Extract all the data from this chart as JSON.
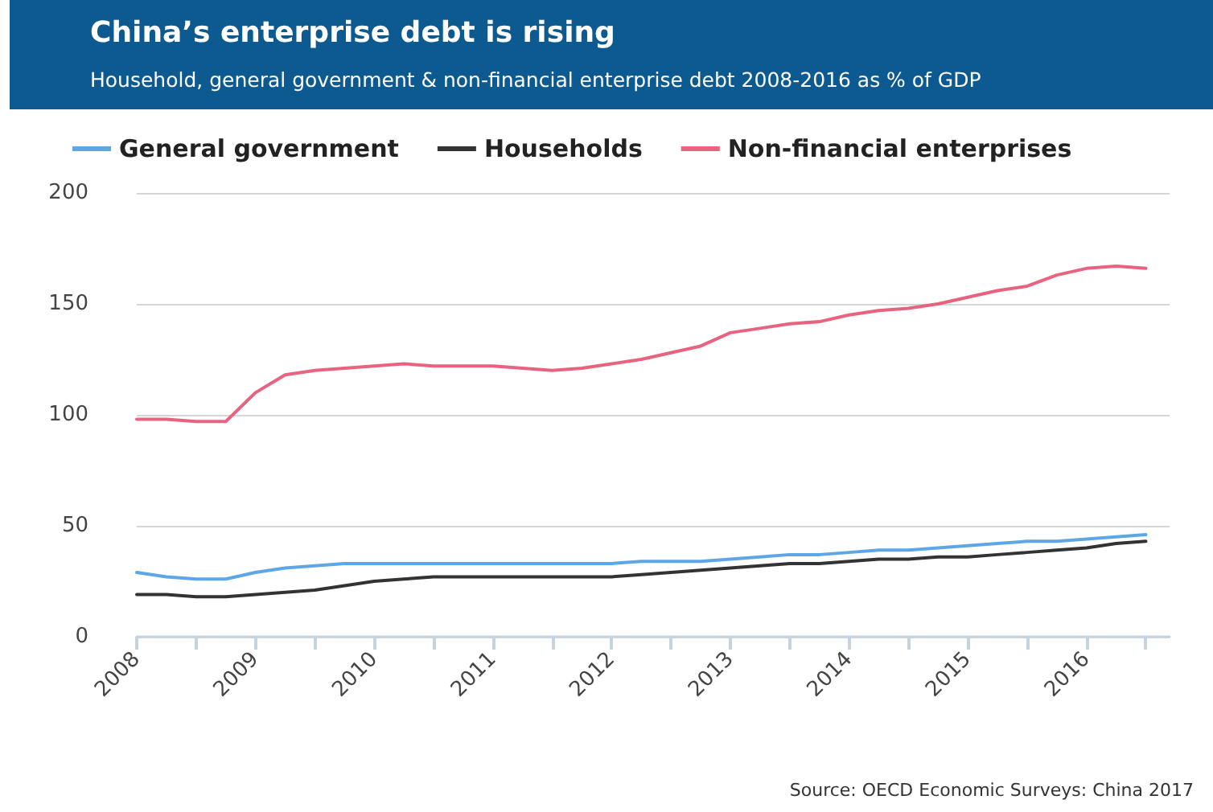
{
  "chart_data": {
    "type": "line",
    "title": "China’s enterprise debt is rising",
    "subtitle": "Household, general government & non-financial enterprise debt 2008-2016 as % of GDP",
    "annotations": [
      "Source: OECD Economic Surveys: China 2017"
    ],
    "x": [
      2008,
      2008.25,
      2008.5,
      2008.75,
      2009,
      2009.25,
      2009.5,
      2009.75,
      2010,
      2010.25,
      2010.5,
      2010.75,
      2011,
      2011.25,
      2011.5,
      2011.75,
      2012,
      2012.25,
      2012.5,
      2012.75,
      2013,
      2013.25,
      2013.5,
      2013.75,
      2014,
      2014.25,
      2014.5,
      2014.75,
      2015,
      2015.25,
      2015.5,
      2015.75,
      2016,
      2016.25,
      2016.5
    ],
    "series": [
      {
        "name": "General government",
        "color": "#5ea7e6",
        "values": [
          29,
          27,
          26,
          26,
          29,
          31,
          32,
          33,
          33,
          33,
          33,
          33,
          33,
          33,
          33,
          33,
          33,
          34,
          34,
          34,
          35,
          36,
          37,
          37,
          38,
          39,
          39,
          40,
          41,
          42,
          43,
          43,
          44,
          45,
          46
        ]
      },
      {
        "name": "Households",
        "color": "#333333",
        "values": [
          19,
          19,
          18,
          18,
          19,
          20,
          21,
          23,
          25,
          26,
          27,
          27,
          27,
          27,
          27,
          27,
          27,
          28,
          29,
          30,
          31,
          32,
          33,
          33,
          34,
          35,
          35,
          36,
          36,
          37,
          38,
          39,
          40,
          42,
          43
        ]
      },
      {
        "name": "Non-financial enterprises",
        "color": "#e8637f",
        "values": [
          98,
          98,
          97,
          97,
          110,
          118,
          120,
          121,
          122,
          123,
          122,
          122,
          122,
          121,
          120,
          121,
          123,
          125,
          128,
          131,
          137,
          139,
          141,
          142,
          145,
          147,
          148,
          150,
          153,
          156,
          158,
          163,
          166,
          167,
          166
        ]
      }
    ],
    "xlim": [
      2008,
      2016.7
    ],
    "xticks": [
      2008,
      {
        "value": 2008.5,
        "label": null
      },
      2009,
      {
        "value": 2009.5,
        "label": null
      },
      2010,
      {
        "value": 2010.5,
        "label": null
      },
      2011,
      {
        "value": 2011.5,
        "label": null
      },
      2012,
      {
        "value": 2012.5,
        "label": null
      },
      2013,
      {
        "value": 2013.5,
        "label": null
      },
      2014,
      {
        "value": 2014.5,
        "label": null
      },
      2015,
      {
        "value": 2015.5,
        "label": null
      },
      2016,
      {
        "value": 2016.5,
        "label": null
      }
    ],
    "ylim": [
      0,
      200
    ],
    "yticks": [
      0,
      50,
      100,
      150,
      200
    ],
    "grid": "y",
    "legend": "top left",
    "marker": "none",
    "line_style": "solid"
  }
}
